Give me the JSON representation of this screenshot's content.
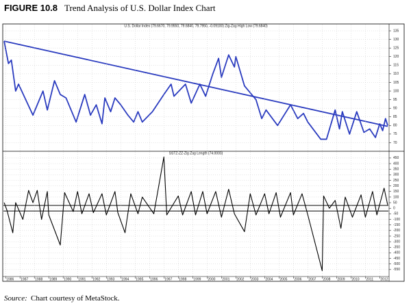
{
  "figure_label": "FIGURE 10.8",
  "title": "Trend Analysis of U.S. Dollar Index Chart",
  "source_label": "Source:",
  "source_text": "Chart courtesy of MetaStock.",
  "chart_data": [
    {
      "type": "line",
      "title": "U.S. Dollar Index (79.6670, 79.9550, 79.6840, 79.7950, -0.09100) Zig-Zag High Low (79.6840)",
      "xlim": [
        1985.85,
        2012.6
      ],
      "ylim": [
        67,
        137
      ],
      "yticks": [
        70,
        75,
        80,
        85,
        90,
        95,
        100,
        105,
        110,
        115,
        120,
        125,
        130,
        135
      ],
      "grid": true,
      "series": [
        {
          "name": "Zig-Zag High Low",
          "color": "#2a3bbf",
          "x": [
            1985.9,
            1986.2,
            1986.4,
            1986.7,
            1986.9,
            1987.9,
            1988.6,
            1988.9,
            1989.4,
            1989.8,
            1990.2,
            1990.9,
            1991.5,
            1991.9,
            1992.3,
            1992.7,
            1992.9,
            1993.3,
            1993.6,
            1994.0,
            1994.5,
            1994.9,
            1995.2,
            1995.5,
            1996.2,
            1997.0,
            1997.5,
            1997.7,
            1998.5,
            1998.9,
            1999.5,
            1999.9,
            2000.4,
            2000.8,
            2001.0,
            2001.5,
            2001.9,
            2002.0,
            2002.6,
            2003.0,
            2003.4,
            2003.8,
            2004.1,
            2004.9,
            2005.8,
            2006.3,
            2006.7,
            2007.0,
            2007.9,
            2008.3,
            2008.9,
            2009.2,
            2009.4,
            2009.9,
            2010.4,
            2010.9,
            2011.3,
            2011.7,
            2012.0,
            2012.2,
            2012.4,
            2012.55
          ],
          "values": [
            129,
            116,
            118,
            100,
            104,
            86,
            100,
            89,
            106,
            98,
            96,
            82,
            98,
            86,
            92,
            81,
            96,
            88,
            96,
            92,
            86,
            82,
            88,
            82,
            88,
            98,
            104,
            97,
            104,
            93,
            104,
            97,
            110,
            119,
            108,
            121,
            114,
            120,
            103,
            99,
            95,
            84,
            89,
            80,
            92,
            84,
            87,
            82,
            72,
            72,
            89,
            78,
            88,
            75,
            88,
            76,
            78,
            73,
            81,
            77,
            84,
            80
          ]
        },
        {
          "name": "Trend Line",
          "color": "#2a3bbf",
          "x": [
            1985.9,
            2012.55
          ],
          "values": [
            129,
            79.5
          ]
        }
      ]
    },
    {
      "type": "line",
      "title": "SSTZ-ZZ-Zig Zag Length (74.0000)",
      "xlim": [
        1985.85,
        2012.6
      ],
      "ylim": [
        -600,
        480
      ],
      "yticks": [
        -550,
        -500,
        -450,
        -400,
        -350,
        -300,
        -250,
        -200,
        -150,
        -100,
        -50,
        0,
        50,
        100,
        150,
        200,
        250,
        300,
        350,
        400,
        450
      ],
      "grid": true,
      "xticks": [
        1986,
        1987,
        1988,
        1989,
        1990,
        1991,
        1992,
        1993,
        1994,
        1995,
        1996,
        1997,
        1998,
        1999,
        2000,
        2001,
        2002,
        2003,
        2004,
        2005,
        2006,
        2007,
        2008,
        2009,
        2010,
        2011,
        2012
      ],
      "hlines": [
        25,
        -25
      ],
      "series": [
        {
          "name": "Zig Zag Length",
          "color": "#000000",
          "x": [
            1985.9,
            1986.1,
            1986.5,
            1986.7,
            1987.2,
            1987.6,
            1987.9,
            1988.2,
            1988.5,
            1988.9,
            1989.0,
            1989.8,
            1990.1,
            1990.7,
            1991.0,
            1991.3,
            1991.8,
            1992.1,
            1992.7,
            1993.0,
            1993.6,
            1993.8,
            1994.3,
            1994.7,
            1995.2,
            1995.5,
            1996.3,
            1997.0,
            1997.2,
            1998.0,
            1998.3,
            1998.9,
            1999.2,
            1999.7,
            2000.0,
            2000.6,
            2001.0,
            2001.5,
            2001.9,
            2002.6,
            2003.0,
            2003.4,
            2004.0,
            2004.3,
            2004.8,
            2005.1,
            2005.8,
            2006.0,
            2006.6,
            2007.0,
            2008.0,
            2008.1,
            2008.5,
            2008.9,
            2009.3,
            2009.6,
            2010.1,
            2010.7,
            2011.0,
            2011.5,
            2011.8,
            2012.3,
            2012.55
          ],
          "values": [
            50,
            -20,
            -220,
            50,
            -100,
            160,
            50,
            160,
            -100,
            150,
            -60,
            -330,
            140,
            -30,
            150,
            -50,
            130,
            -40,
            130,
            -60,
            150,
            -40,
            -220,
            130,
            -50,
            100,
            -50,
            460,
            -60,
            110,
            -60,
            150,
            -60,
            150,
            -50,
            150,
            -80,
            170,
            -50,
            -210,
            130,
            -60,
            130,
            -50,
            140,
            -80,
            140,
            -60,
            130,
            -60,
            -560,
            110,
            0,
            70,
            -180,
            100,
            -80,
            120,
            -80,
            150,
            -60,
            180,
            30
          ]
        }
      ]
    }
  ]
}
